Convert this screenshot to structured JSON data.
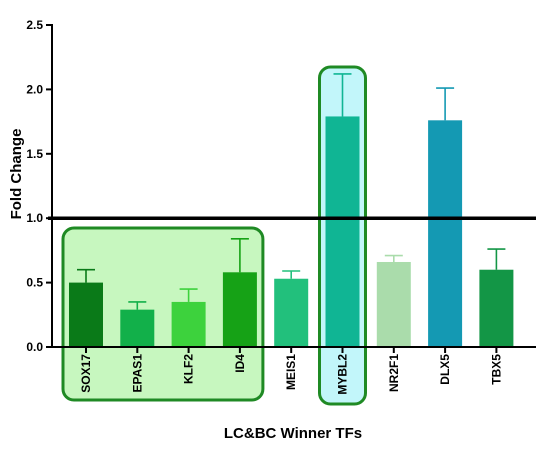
{
  "chart_data": {
    "type": "bar",
    "title": "",
    "xlabel": "LC&BC Winner TFs",
    "ylabel": "Fold Change",
    "ylim": [
      0,
      2.5
    ],
    "yticks": [
      "0.0",
      "0.5",
      "1.0",
      "1.5",
      "2.0",
      "2.5"
    ],
    "reference_line": 1.0,
    "grid": false,
    "categories": [
      "SOX17",
      "EPAS1",
      "KLF2",
      "ID4",
      "MEIS1",
      "MYBL2",
      "NR2F1",
      "DLX5",
      "TBX5"
    ],
    "values": [
      0.5,
      0.29,
      0.35,
      0.58,
      0.53,
      1.79,
      0.66,
      1.76,
      0.6
    ],
    "error_upper": [
      0.6,
      0.35,
      0.45,
      0.84,
      0.59,
      2.12,
      0.71,
      2.01,
      0.76
    ],
    "colors": [
      "#0a7a18",
      "#12b04a",
      "#3dd23d",
      "#16a216",
      "#22c07c",
      "#10b594",
      "#aadcab",
      "#1499b3",
      "#139646"
    ],
    "highlight_groups": [
      {
        "categories": [
          "SOX17",
          "EPAS1",
          "KLF2",
          "ID4"
        ],
        "fill": "#c7f7bf",
        "stroke": "#1f8a24"
      },
      {
        "categories": [
          "MYBL2"
        ],
        "fill": "#c2f6fa",
        "stroke": "#1f8a24"
      }
    ]
  }
}
